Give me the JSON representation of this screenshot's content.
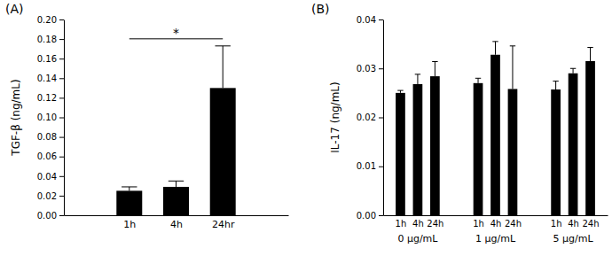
{
  "chart_data": [
    {
      "type": "bar",
      "title": "(A)",
      "y_label": "TGF-β (ng/mL)",
      "categories": [
        "1h",
        "4h",
        "24hr"
      ],
      "values": [
        0.025,
        0.029,
        0.13
      ],
      "errors": [
        0.004,
        0.006,
        0.043
      ],
      "color": "#000000",
      "ylim": [
        0,
        0.2
      ],
      "yticks": [
        {
          "value": 0,
          "label": "0.00"
        },
        {
          "value": 0.02,
          "label": "0.02"
        },
        {
          "value": 0.04,
          "label": "0.04"
        },
        {
          "value": 0.06,
          "label": "0.06"
        },
        {
          "value": 0.08,
          "label": "0.08"
        },
        {
          "value": 0.1,
          "label": "0.10"
        },
        {
          "value": 0.12,
          "label": "0.12"
        },
        {
          "value": 0.14,
          "label": "0.14"
        },
        {
          "value": 0.16,
          "label": "0.16"
        },
        {
          "value": 0.18,
          "label": "0.18"
        },
        {
          "value": 0.2,
          "label": "0.20"
        }
      ],
      "annotations": [
        {
          "text": "*",
          "from": 0,
          "to": 2
        }
      ]
    },
    {
      "type": "bar",
      "title": "(B)",
      "y_label": "IL-17 (ng/mL)",
      "categories": [
        "1h",
        "4h",
        "24h",
        "1h",
        "4h",
        "24h",
        "1h",
        "4h",
        "24h"
      ],
      "group_labels": [
        "0 μg/mL",
        "1 μg/mL",
        "5 μg/mL"
      ],
      "values": [
        0.025,
        0.0268,
        0.0284,
        0.027,
        0.0328,
        0.0258,
        0.0257,
        0.029,
        0.0315
      ],
      "errors": [
        0.0005,
        0.002,
        0.003,
        0.001,
        0.0027,
        0.0088,
        0.0017,
        0.001,
        0.0028
      ],
      "color": "#000000",
      "ylim": [
        0,
        0.04
      ],
      "yticks": [
        {
          "value": 0,
          "label": "0.00"
        },
        {
          "value": 0.01,
          "label": "0.01"
        },
        {
          "value": 0.02,
          "label": "0.02"
        },
        {
          "value": 0.03,
          "label": "0.03"
        },
        {
          "value": 0.04,
          "label": "0.04"
        }
      ]
    }
  ]
}
